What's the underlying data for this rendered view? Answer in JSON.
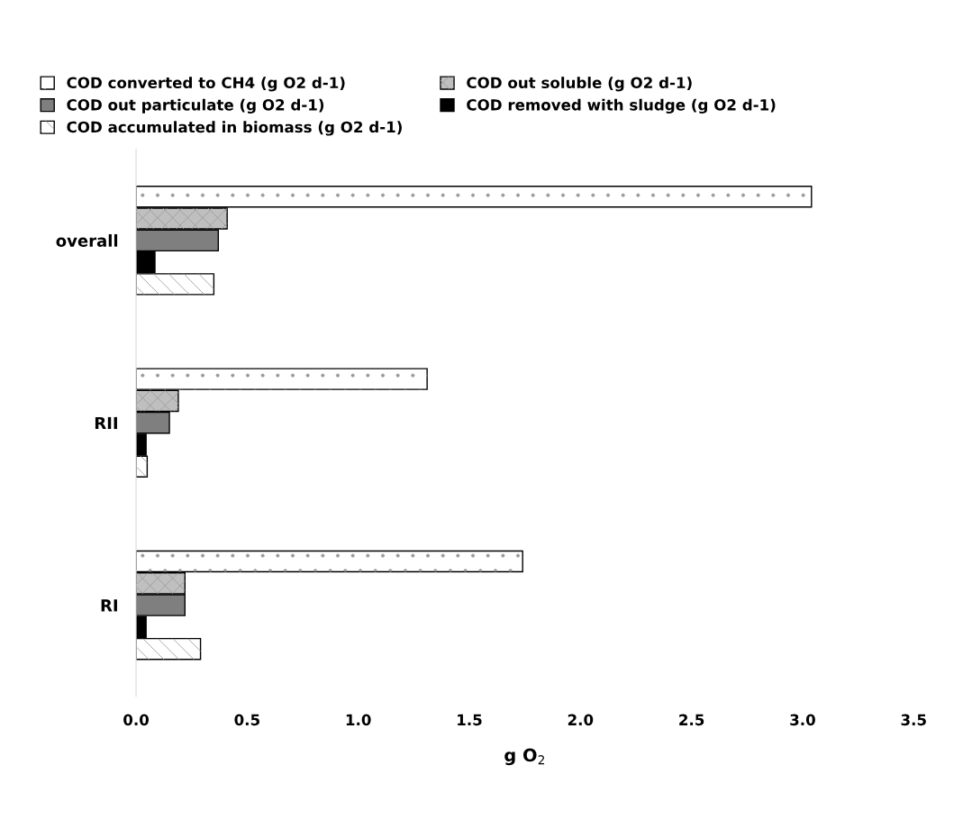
{
  "chart_data": {
    "type": "bar",
    "orientation": "horizontal",
    "xlabel": "g O$_{2}$",
    "categories": [
      "overall",
      "RII",
      "RI"
    ],
    "series": [
      {
        "name": "COD converted to CH4 (g O2 d-1)",
        "color": "#ffffff",
        "values": [
          3.04,
          1.31,
          1.74
        ]
      },
      {
        "name": "COD out soluble (g O2 d-1)",
        "color": "#bfbfbf",
        "values": [
          0.41,
          0.19,
          0.22
        ]
      },
      {
        "name": "COD out particulate (g O2 d-1)",
        "color": "#7f7f7f",
        "values": [
          0.37,
          0.15,
          0.22
        ]
      },
      {
        "name": "COD removed with sludge (g O2 d-1)",
        "color": "#000000",
        "values": [
          0.085,
          0.045,
          0.045
        ]
      },
      {
        "name": "COD accumulated in biomass (g O2 d-1)",
        "color": "#ffffff",
        "values": [
          0.35,
          0.05,
          0.29
        ]
      }
    ],
    "xlim": [
      0,
      3.5
    ],
    "xticks": [
      {
        "value": 0,
        "label": "0.0"
      },
      {
        "value": 0.5,
        "label": "0.5"
      },
      {
        "value": 1,
        "label": "1.0"
      },
      {
        "value": 1.5,
        "label": "1.5"
      },
      {
        "value": 2,
        "label": "2.0"
      },
      {
        "value": 2.5,
        "label": "2.5"
      },
      {
        "value": 3,
        "label": "3.0"
      },
      {
        "value": 3.5,
        "label": "3.5"
      }
    ],
    "legend": "top",
    "grid": false
  }
}
